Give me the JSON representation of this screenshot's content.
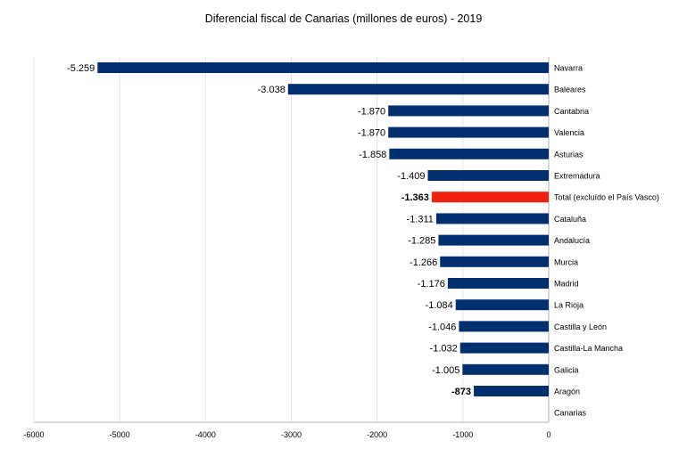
{
  "chart_data": {
    "type": "bar",
    "orientation": "horizontal",
    "title": "Diferencial fiscal de Canarias (millones de euros) - 2019",
    "xlabel": "",
    "ylabel": "",
    "xlim": [
      -6000,
      0
    ],
    "x_ticks": [
      -6000,
      -5000,
      -4000,
      -3000,
      -2000,
      -1000,
      0
    ],
    "x_tick_labels": [
      "-6000",
      "-5000",
      "-4000",
      "-3000",
      "-2000",
      "-1000",
      "0"
    ],
    "grid": "vertical",
    "legend": "none",
    "categories": [
      "Navarra",
      "Baleares",
      "Cantabria",
      "Valencia",
      "Asturias",
      "Extremadura",
      "Total (excluído el País Vasco)",
      "Cataluña",
      "Andalucía",
      "Murcia",
      "Madrid",
      "La Rioja",
      "Castilla y León",
      "Castilla-La Mancha",
      "Galicia",
      "Aragón",
      "Canarias"
    ],
    "values": [
      -5259,
      -3038,
      -1870,
      -1870,
      -1858,
      -1409,
      -1363,
      -1311,
      -1285,
      -1266,
      -1176,
      -1084,
      -1046,
      -1032,
      -1005,
      -873,
      null
    ],
    "data_labels": [
      "-5.259",
      "-3.038",
      "-1.870",
      "-1.870",
      "-1.858",
      "-1.409",
      "-1.363",
      "-1.311",
      "-1.285",
      "-1.266",
      "-1.176",
      "-1.084",
      "-1.046",
      "-1.032",
      "-1.005",
      "-873",
      ""
    ],
    "bold_labels": [
      "Total (excluído el País Vasco)",
      "Aragón"
    ],
    "highlight_category": "Total (excluído el País Vasco)",
    "colors": {
      "bar": "#003070",
      "highlight": "#f0220f",
      "grid": "#e6e6e6",
      "axis": "#b3b3b3"
    }
  }
}
